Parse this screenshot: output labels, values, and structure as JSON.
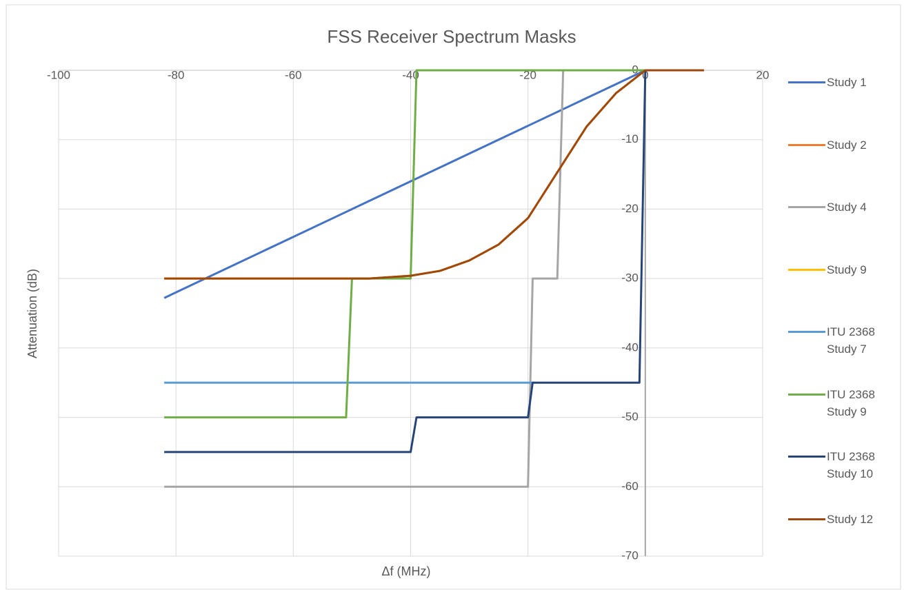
{
  "chart_data": {
    "type": "line",
    "title": "FSS Receiver Spectrum Masks",
    "x_label": "Δf (MHz)",
    "y_label": "Attenuation (dB)",
    "xlim": [
      -100,
      20
    ],
    "xticks": [
      -100,
      -80,
      -60,
      -40,
      -20,
      0,
      20
    ],
    "ylim": [
      -70,
      0
    ],
    "yticks": [
      0,
      -10,
      -20,
      -30,
      -40,
      -50,
      -60,
      -70
    ],
    "grid": true,
    "legend": "right",
    "series": [
      {
        "name": "Study 1",
        "color": "#4472c4",
        "x": [
          -82,
          -80,
          -60,
          -40,
          -20,
          -10,
          0
        ],
        "values": [
          -32.8,
          -32,
          -24,
          -16,
          -8,
          -4,
          0
        ]
      },
      {
        "name": "Study 2",
        "color": "#ed7d31",
        "x": [
          -82,
          -47,
          -40,
          -35,
          -30,
          -25,
          -20,
          -15,
          -10,
          -5,
          0,
          10
        ],
        "values": [
          -30,
          -30,
          -29.6,
          -28.9,
          -27.4,
          -25.1,
          -21.3,
          -14.7,
          -8.1,
          -3.3,
          0,
          0
        ]
      },
      {
        "name": "Study 4",
        "color": "#a5a5a5",
        "x": [
          -82,
          -20,
          -19.2,
          -15,
          -14,
          0
        ],
        "values": [
          -60,
          -60,
          -30,
          -30,
          0,
          0
        ]
      },
      {
        "name": "Study 9",
        "color": "#ffc000",
        "x": [
          -82,
          -47,
          -40,
          -35,
          -30,
          -25,
          -20,
          -15,
          -10,
          -5,
          0,
          10
        ],
        "values": [
          -30,
          -30,
          -29.6,
          -28.9,
          -27.4,
          -25.1,
          -21.3,
          -14.7,
          -8.1,
          -3.3,
          0,
          0
        ]
      },
      {
        "name": "ITU 2368 Study 7",
        "color": "#5b9bd5",
        "x": [
          -82,
          -19
        ],
        "values": [
          -45,
          -45
        ]
      },
      {
        "name": "ITU 2368 Study 9",
        "color": "#70ad47",
        "x": [
          -82,
          -51,
          -50,
          -40,
          -39,
          0
        ],
        "values": [
          -50,
          -50,
          -30,
          -30,
          0,
          0
        ]
      },
      {
        "name": "ITU 2368 Study 10",
        "color": "#264478",
        "x": [
          -82,
          -40,
          -39,
          -20,
          -19.2,
          -1,
          0
        ],
        "values": [
          -55,
          -55,
          -50,
          -50,
          -45,
          -45,
          0
        ]
      },
      {
        "name": "Study 12",
        "color": "#9e480e",
        "x": [
          -82,
          -47,
          -40,
          -35,
          -30,
          -25,
          -20,
          -15,
          -10,
          -5,
          0,
          10
        ],
        "values": [
          -30,
          -30,
          -29.6,
          -28.9,
          -27.4,
          -25.1,
          -21.3,
          -14.7,
          -8.1,
          -3.3,
          0,
          0
        ]
      }
    ]
  }
}
